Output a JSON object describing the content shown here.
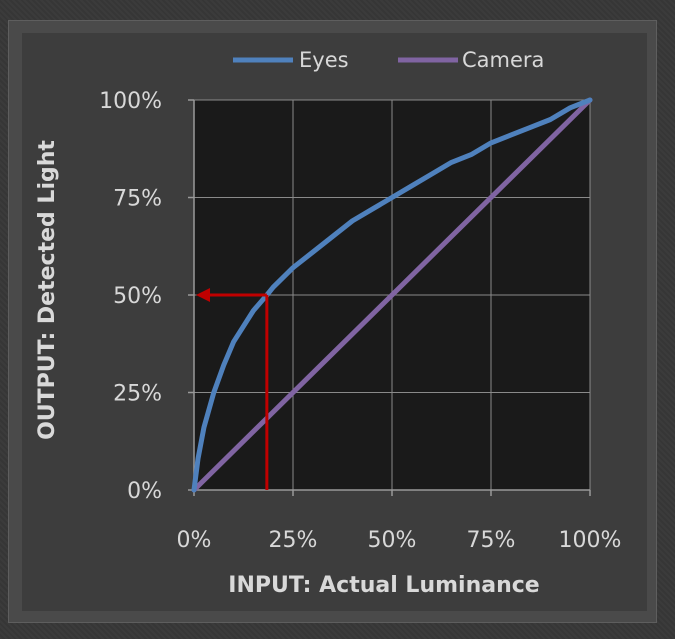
{
  "chart_data": {
    "type": "line",
    "xlabel": "INPUT: Actual Luminance",
    "ylabel": "OUTPUT: Detected Light",
    "xlim": [
      0,
      100
    ],
    "ylim": [
      0,
      100
    ],
    "x_ticks": [
      "0%",
      "25%",
      "50%",
      "75%",
      "100%"
    ],
    "y_ticks": [
      "0%",
      "25%",
      "50%",
      "75%",
      "100%"
    ],
    "grid": true,
    "legend_position": "top",
    "series": [
      {
        "name": "Eyes",
        "color": "#4f81bd",
        "x": [
          0,
          1,
          2.5,
          5,
          7.5,
          10,
          12.5,
          15,
          18.4,
          20,
          25,
          30,
          35,
          40,
          45,
          50,
          55,
          60,
          65,
          70,
          75,
          80,
          85,
          90,
          95,
          100
        ],
        "y": [
          0,
          8,
          16,
          25,
          32,
          38,
          42,
          46,
          50,
          52,
          57,
          61,
          65,
          69,
          72,
          75,
          78,
          81,
          84,
          86,
          89,
          91,
          93,
          95,
          98,
          100
        ]
      },
      {
        "name": "Camera",
        "color": "#8064a2",
        "x": [
          0,
          100
        ],
        "y": [
          0,
          100
        ]
      }
    ],
    "annotation": {
      "color": "#c00000",
      "input_x": 18.4,
      "output_y": 50
    }
  }
}
